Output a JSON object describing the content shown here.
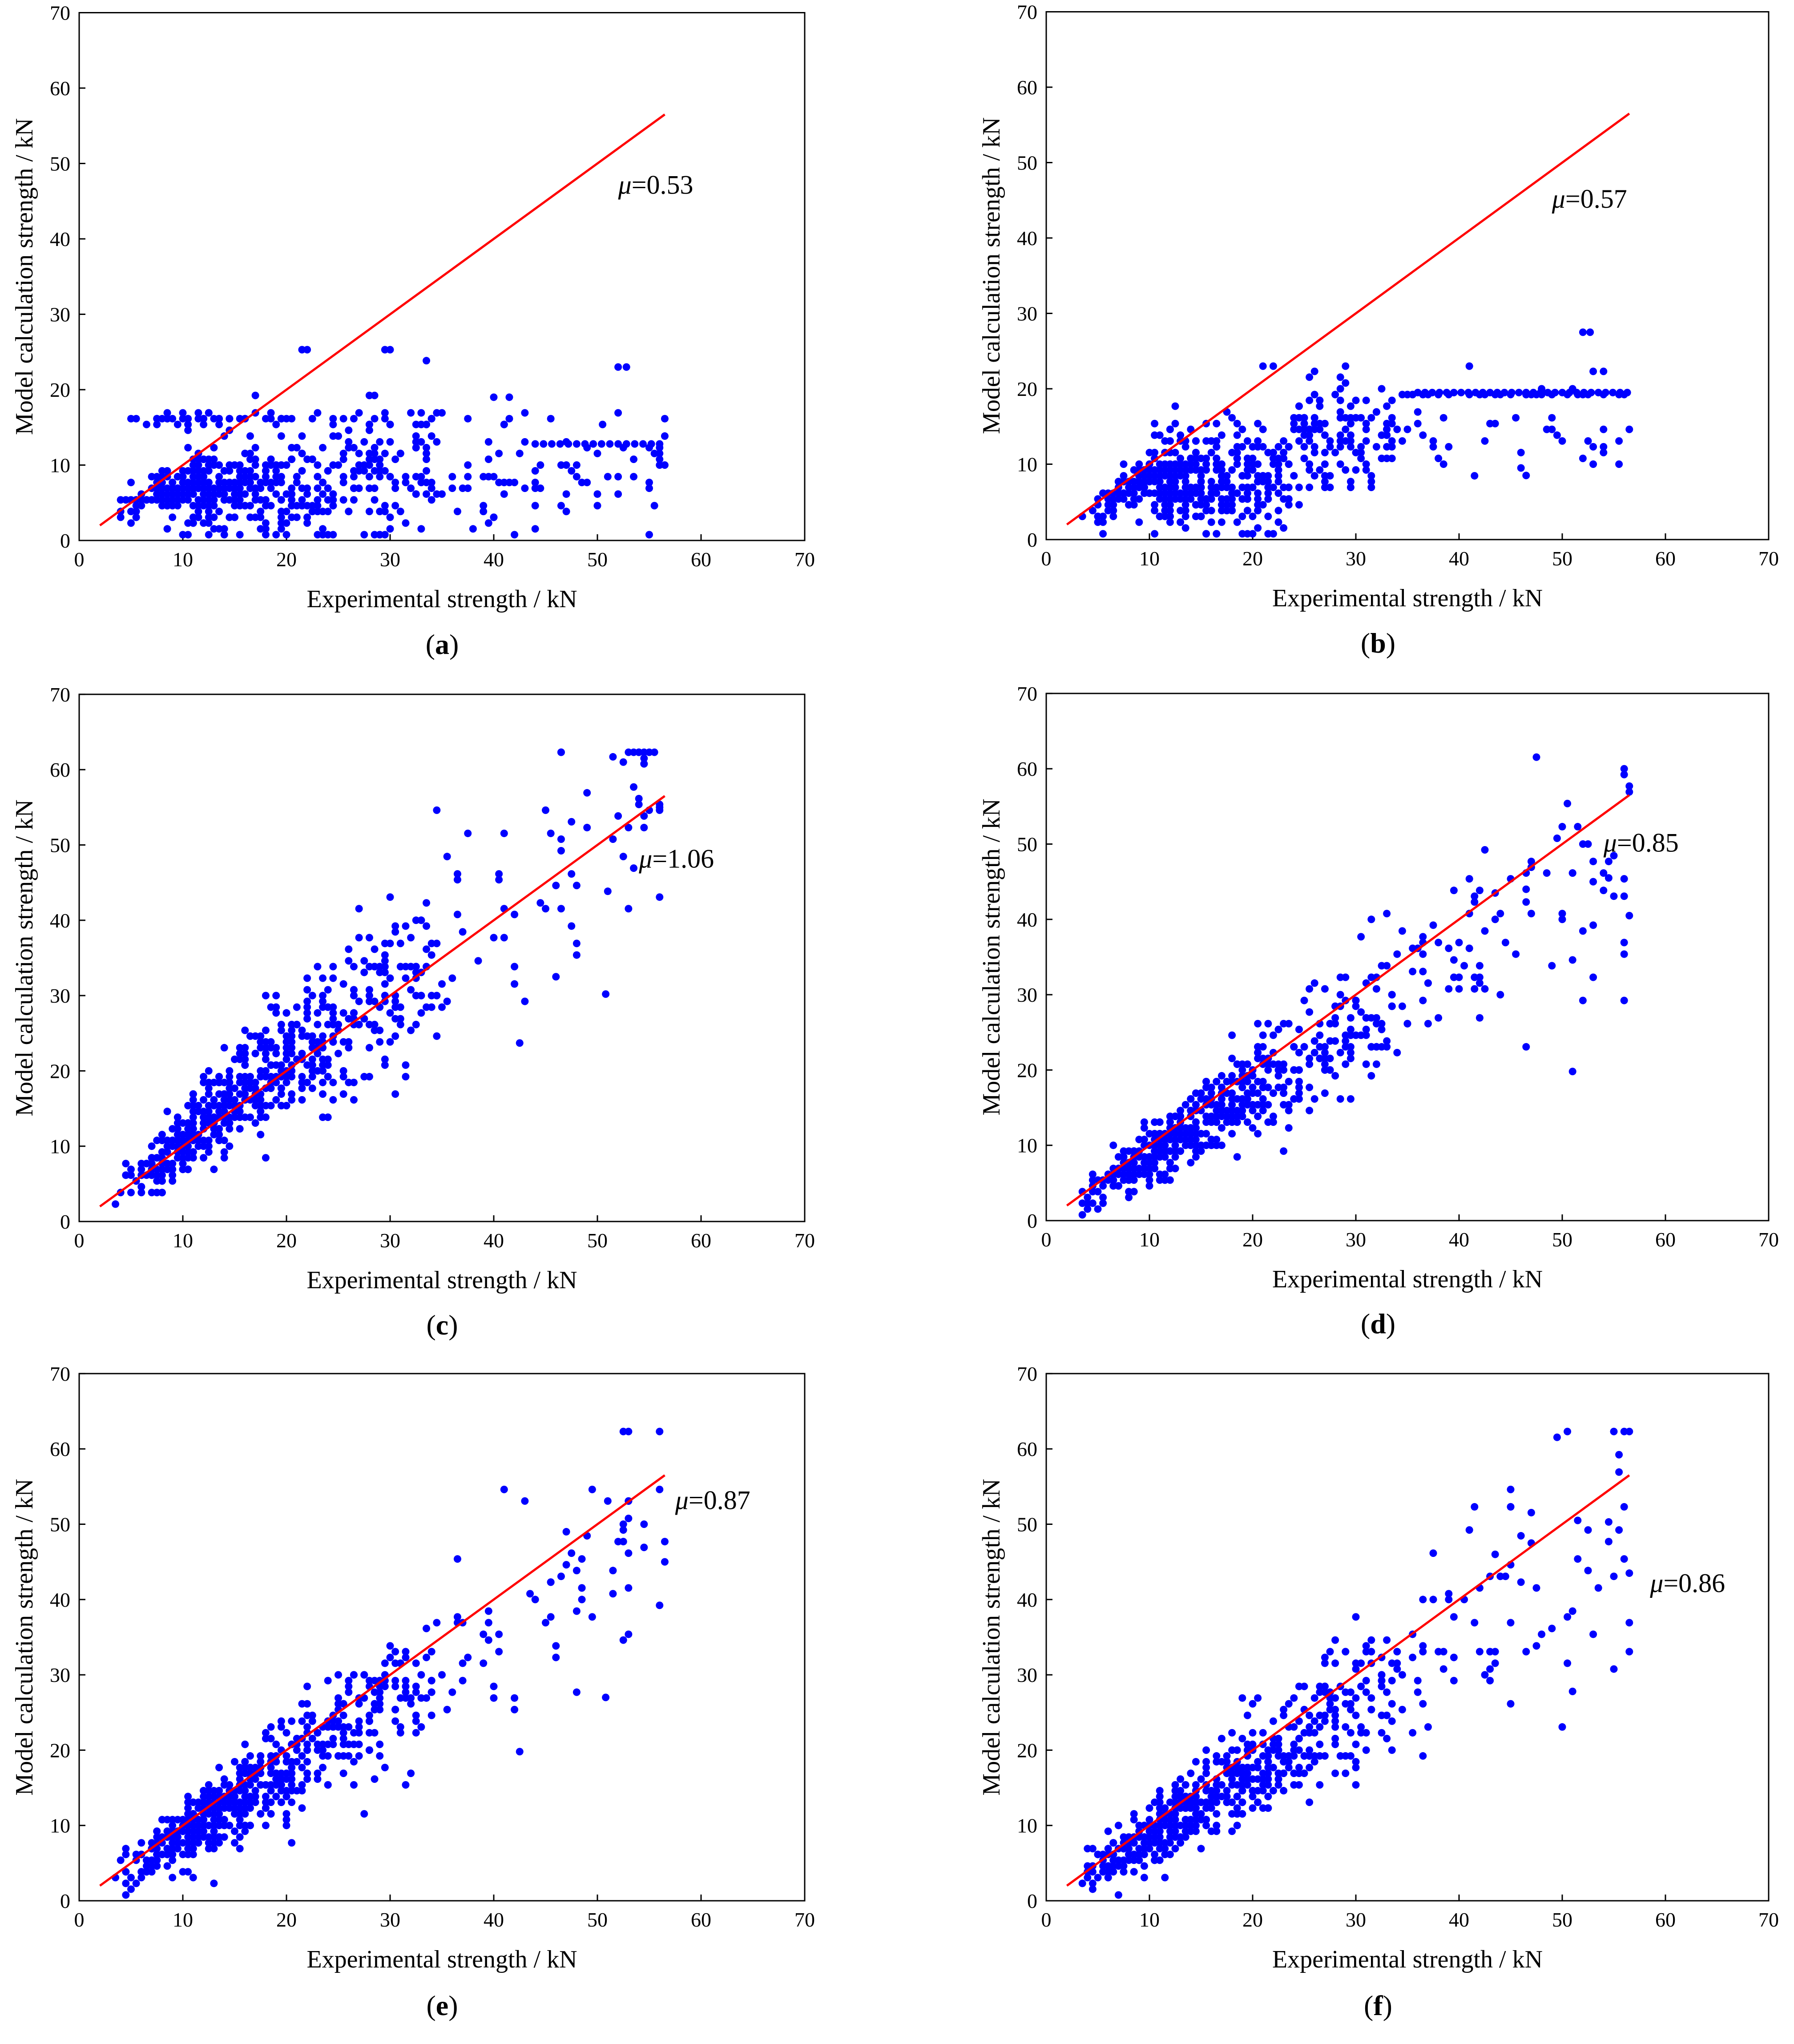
{
  "figure": {
    "point_color": "#0000ff",
    "line_color": "#ff0000"
  },
  "chart_data": [
    {
      "panel": "a",
      "caption": "(a)",
      "type": "scatter",
      "xlabel": "Experimental strength / kN",
      "ylabel": "Model calculation strength / kN",
      "xlim": [
        0,
        70
      ],
      "ylim": [
        0,
        70
      ],
      "xticks": [
        0,
        10,
        20,
        30,
        40,
        50,
        60,
        70
      ],
      "yticks": [
        0,
        10,
        20,
        30,
        40,
        50,
        60,
        70
      ],
      "reference_line": {
        "x": [
          2,
          56.5
        ],
        "y": [
          2,
          56.5
        ]
      },
      "annotation": {
        "symbol": "μ",
        "text": "=0.53",
        "mu": 0.53,
        "x": 52,
        "y": 46
      },
      "model": {
        "mode": "flat",
        "seed": 11
      },
      "highlights": [
        [
          21.5,
          25.3
        ],
        [
          22,
          25.3
        ],
        [
          29.5,
          25.3
        ],
        [
          30,
          25.3
        ],
        [
          52,
          23
        ],
        [
          52.8,
          23
        ],
        [
          40,
          19
        ],
        [
          41.5,
          19
        ]
      ],
      "flat_rows": {
        "y": 12.8,
        "from": 44,
        "to": 56.5,
        "step": 0.8
      }
    },
    {
      "panel": "b",
      "caption": "(b)",
      "type": "scatter",
      "xlabel": "Experimental strength / kN",
      "ylabel": "Model calculation strength / kN",
      "xlim": [
        0,
        70
      ],
      "ylim": [
        0,
        70
      ],
      "xticks": [
        0,
        10,
        20,
        30,
        40,
        50,
        60,
        70
      ],
      "yticks": [
        0,
        10,
        20,
        30,
        40,
        50,
        60,
        70
      ],
      "reference_line": {
        "x": [
          2,
          56.5
        ],
        "y": [
          2,
          56.5
        ]
      },
      "annotation": {
        "symbol": "μ",
        "text": "=0.57",
        "mu": 0.57,
        "x": 49,
        "y": 44
      },
      "model": {
        "mode": "flat2",
        "seed": 23
      },
      "highlights": [
        [
          52,
          27.5
        ],
        [
          52.7,
          27.5
        ],
        [
          21,
          23
        ],
        [
          22,
          23
        ],
        [
          29,
          23
        ],
        [
          41,
          23
        ],
        [
          46,
          9.5
        ],
        [
          46.5,
          8.5
        ]
      ],
      "flat_rows": {
        "y": 19.5,
        "from": 36,
        "to": 56.5,
        "step": 0.7
      }
    },
    {
      "panel": "c",
      "caption": "(c)",
      "type": "scatter",
      "xlabel": "Experimental strength / kN",
      "ylabel": "Model calculation strength / kN",
      "xlim": [
        0,
        70
      ],
      "ylim": [
        0,
        70
      ],
      "xticks": [
        0,
        10,
        20,
        30,
        40,
        50,
        60,
        70
      ],
      "yticks": [
        0,
        10,
        20,
        30,
        40,
        50,
        60,
        70
      ],
      "reference_line": {
        "x": [
          2,
          56.5
        ],
        "y": [
          2,
          56.5
        ]
      },
      "annotation": {
        "symbol": "μ",
        "text": "=1.06",
        "mu": 1.06,
        "x": 54,
        "y": 47
      },
      "model": {
        "mode": "linear",
        "slope": 1.06,
        "seed": 37
      },
      "highlights": [
        [
          51.5,
          61.7
        ],
        [
          52.5,
          61
        ],
        [
          54.5,
          61.5
        ],
        [
          50.8,
          30.2
        ],
        [
          46,
          32.5
        ],
        [
          42.5,
          23.7
        ],
        [
          56,
          55
        ]
      ],
      "flat_rows": null
    },
    {
      "panel": "d",
      "caption": "(d)",
      "type": "scatter",
      "xlabel": "Experimental strength / kN",
      "ylabel": "Model calculation strength / kN",
      "xlim": [
        0,
        70
      ],
      "ylim": [
        0,
        70
      ],
      "xticks": [
        0,
        10,
        20,
        30,
        40,
        50,
        60,
        70
      ],
      "yticks": [
        0,
        10,
        20,
        30,
        40,
        50,
        60,
        70
      ],
      "reference_line": {
        "x": [
          2,
          56.5
        ],
        "y": [
          2,
          56.5
        ]
      },
      "annotation": {
        "symbol": "μ",
        "text": "=0.85",
        "mu": 0.85,
        "x": 54,
        "y": 49
      },
      "model": {
        "mode": "linear",
        "slope": 0.85,
        "seed": 53
      },
      "highlights": [
        [
          54.5,
          45.5
        ],
        [
          53,
          45
        ],
        [
          51,
          19.8
        ],
        [
          56.5,
          40.5
        ],
        [
          43.5,
          43.5
        ],
        [
          46.5,
          44
        ]
      ],
      "flat_rows": null
    },
    {
      "panel": "e",
      "caption": "(e)",
      "type": "scatter",
      "xlabel": "Experimental strength / kN",
      "ylabel": "Model calculation strength / kN",
      "xlim": [
        0,
        70
      ],
      "ylim": [
        0,
        70
      ],
      "xticks": [
        0,
        10,
        20,
        30,
        40,
        50,
        60,
        70
      ],
      "yticks": [
        0,
        10,
        20,
        30,
        40,
        50,
        60,
        70
      ],
      "reference_line": {
        "x": [
          2,
          56.5
        ],
        "y": [
          2,
          56.5
        ]
      },
      "annotation": {
        "symbol": "μ",
        "text": "=0.87",
        "mu": 0.87,
        "x": 57.5,
        "y": 52
      },
      "model": {
        "mode": "linear",
        "slope": 0.87,
        "seed": 71
      },
      "highlights": [
        [
          54.5,
          50
        ],
        [
          52.5,
          50
        ],
        [
          50.8,
          27
        ],
        [
          42.5,
          19.8
        ],
        [
          56.5,
          45
        ],
        [
          47,
          49
        ]
      ],
      "flat_rows": null
    },
    {
      "panel": "f",
      "caption": "(f)",
      "type": "scatter",
      "xlabel": "Experimental strength / kN",
      "ylabel": "Model calculation strength / kN",
      "xlim": [
        0,
        70
      ],
      "ylim": [
        0,
        70
      ],
      "xticks": [
        0,
        10,
        20,
        30,
        40,
        50,
        60,
        70
      ],
      "yticks": [
        0,
        10,
        20,
        30,
        40,
        50,
        60,
        70
      ],
      "reference_line": {
        "x": [
          2,
          56.5
        ],
        "y": [
          2,
          56.5
        ]
      },
      "annotation": {
        "symbol": "μ",
        "text": "=0.86",
        "mu": 0.86,
        "x": 58.5,
        "y": 41
      },
      "model": {
        "mode": "linear",
        "slope": 0.86,
        "seed": 89
      },
      "highlights": [
        [
          51.5,
          50.5
        ],
        [
          54.5,
          50.3
        ],
        [
          51,
          27.8
        ],
        [
          43.5,
          46
        ],
        [
          56.5,
          43.5
        ],
        [
          47,
          47.5
        ]
      ],
      "flat_rows": null
    }
  ]
}
